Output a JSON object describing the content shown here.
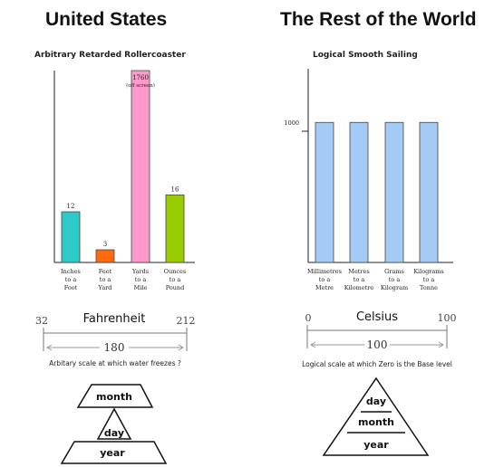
{
  "left": {
    "heading": "United States",
    "chart_title": "Arbitrary Retarded Rollercoaster",
    "scale": {
      "name": "Fahrenheit",
      "low": "32",
      "high": "212",
      "span": "180",
      "caption": "Arbitary scale at which water freezes ?"
    },
    "pyramid": {
      "top": "month",
      "middle": "day",
      "bottom": "year"
    }
  },
  "right": {
    "heading": "The Rest of the World",
    "chart_title": "Logical Smooth Sailing",
    "scale": {
      "name": "Celsius",
      "low": "0",
      "high": "100",
      "span": "100",
      "caption": "Logical scale at which Zero is the Base level"
    },
    "pyramid": {
      "top": "day",
      "middle": "month",
      "bottom": "year"
    }
  },
  "chart_data": [
    {
      "type": "bar",
      "title": "Arbitrary Retarded Rollercoaster",
      "categories": [
        [
          "Inches",
          "to a",
          "Foot"
        ],
        [
          "Feet",
          "to a",
          "Yard"
        ],
        [
          "Yards",
          "to a",
          "Mile"
        ],
        [
          "Ounces",
          "to a",
          "Pound"
        ]
      ],
      "values": [
        12,
        3,
        1760,
        16
      ],
      "value_labels": [
        "12",
        "3",
        "1760",
        "16"
      ],
      "annotations": [
        "",
        "",
        "(off screen)",
        ""
      ],
      "colors": [
        "#2ec9c9",
        "#ff6a0d",
        "#ff99cc",
        "#99cc00"
      ],
      "xlabel": "",
      "ylabel": "",
      "ylim": [
        0,
        45
      ],
      "grid": false
    },
    {
      "type": "bar",
      "title": "Logical Smooth Sailing",
      "categories": [
        [
          "Millimetres",
          "to a",
          "Metre"
        ],
        [
          "Metres",
          "to a",
          "Kilometre"
        ],
        [
          "Grams",
          "to a",
          "Kilogram"
        ],
        [
          "Kilograms",
          "to a",
          "Tonne"
        ]
      ],
      "values": [
        1000,
        1000,
        1000,
        1000
      ],
      "y_ticks": [
        "1000"
      ],
      "colors": [
        "#a3cbf5",
        "#a3cbf5",
        "#a3cbf5",
        "#a3cbf5"
      ],
      "xlabel": "",
      "ylabel": "",
      "ylim": [
        0,
        1370
      ],
      "grid": false
    }
  ]
}
